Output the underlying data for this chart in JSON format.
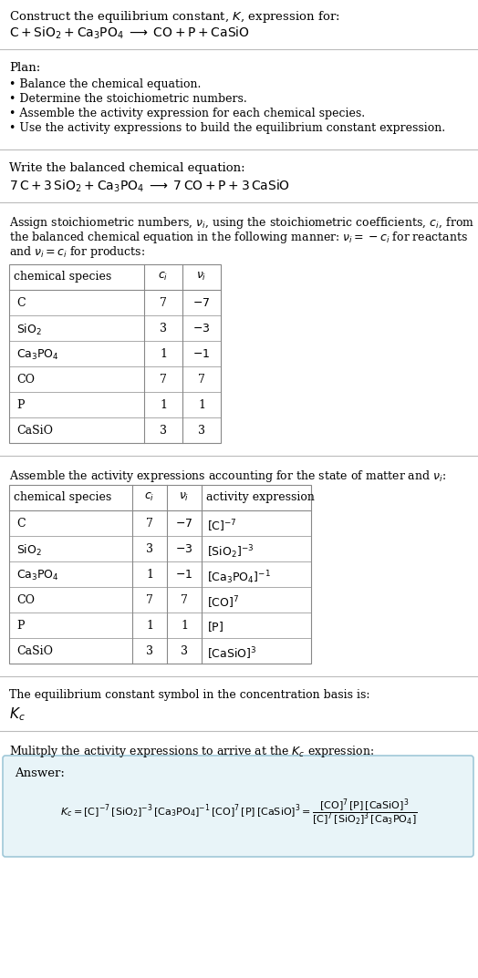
{
  "bg_color": "#ffffff",
  "text_color": "#000000",
  "answer_bg": "#e8f4f8",
  "answer_border": "#a0c8d8",
  "sep_color": "#cccccc",
  "tbl_color": "#888888",
  "s1_l1": "Construct the equilibrium constant, $K$, expression for:",
  "s1_l2": "$\\mathrm{C + SiO_2 + Ca_3PO_4 \\;\\longrightarrow\\; CO + P + CaSiO}$",
  "s2_hdr": "Plan:",
  "s2_items": [
    "• Balance the chemical equation.",
    "• Determine the stoichiometric numbers.",
    "• Assemble the activity expression for each chemical species.",
    "• Use the activity expressions to build the equilibrium constant expression."
  ],
  "s3_hdr": "Write the balanced chemical equation:",
  "s3_eq": "$\\mathrm{7\\,C + 3\\,SiO_2 + Ca_3PO_4 \\;\\longrightarrow\\; 7\\,CO + P + 3\\,CaSiO}$",
  "s4_intro": [
    "Assign stoichiometric numbers, $\\nu_i$, using the stoichiometric coefficients, $c_i$, from",
    "the balanced chemical equation in the following manner: $\\nu_i = -c_i$ for reactants",
    "and $\\nu_i = c_i$ for products:"
  ],
  "t1_hdrs": [
    "chemical species",
    "$c_i$",
    "$\\nu_i$"
  ],
  "t1_rows": [
    [
      "C",
      "7",
      "$-7$"
    ],
    [
      "$\\mathrm{SiO_2}$",
      "3",
      "$-3$"
    ],
    [
      "$\\mathrm{Ca_3PO_4}$",
      "1",
      "$-1$"
    ],
    [
      "CO",
      "7",
      "7"
    ],
    [
      "P",
      "1",
      "1"
    ],
    [
      "CaSiO",
      "3",
      "3"
    ]
  ],
  "s5_intro": "Assemble the activity expressions accounting for the state of matter and $\\nu_i$:",
  "t2_hdrs": [
    "chemical species",
    "$c_i$",
    "$\\nu_i$",
    "activity expression"
  ],
  "t2_rows": [
    [
      "C",
      "7",
      "$-7$",
      "$[\\mathrm{C}]^{-7}$"
    ],
    [
      "$\\mathrm{SiO_2}$",
      "3",
      "$-3$",
      "$[\\mathrm{SiO_2}]^{-3}$"
    ],
    [
      "$\\mathrm{Ca_3PO_4}$",
      "1",
      "$-1$",
      "$[\\mathrm{Ca_3PO_4}]^{-1}$"
    ],
    [
      "CO",
      "7",
      "7",
      "$[\\mathrm{CO}]^7$"
    ],
    [
      "P",
      "1",
      "1",
      "$[\\mathrm{P}]$"
    ],
    [
      "CaSiO",
      "3",
      "3",
      "$[\\mathrm{CaSiO}]^3$"
    ]
  ],
  "s6_intro": "The equilibrium constant symbol in the concentration basis is:",
  "s6_sym": "$K_c$",
  "s7_intro": "Mulitply the activity expressions to arrive at the $K_c$ expression:",
  "ans_label": "Answer:",
  "ans_eq": "$K_c = [\\mathrm{C}]^{-7}\\,[\\mathrm{SiO_2}]^{-3}\\,[\\mathrm{Ca_3PO_4}]^{-1}\\,[\\mathrm{CO}]^7\\,[\\mathrm{P}]\\,[\\mathrm{CaSiO}]^3 = \\dfrac{[\\mathrm{CO}]^7\\,[\\mathrm{P}]\\,[\\mathrm{CaSiO}]^3}{[\\mathrm{C}]^7\\,[\\mathrm{SiO_2}]^3\\,[\\mathrm{Ca_3PO_4}]}$"
}
